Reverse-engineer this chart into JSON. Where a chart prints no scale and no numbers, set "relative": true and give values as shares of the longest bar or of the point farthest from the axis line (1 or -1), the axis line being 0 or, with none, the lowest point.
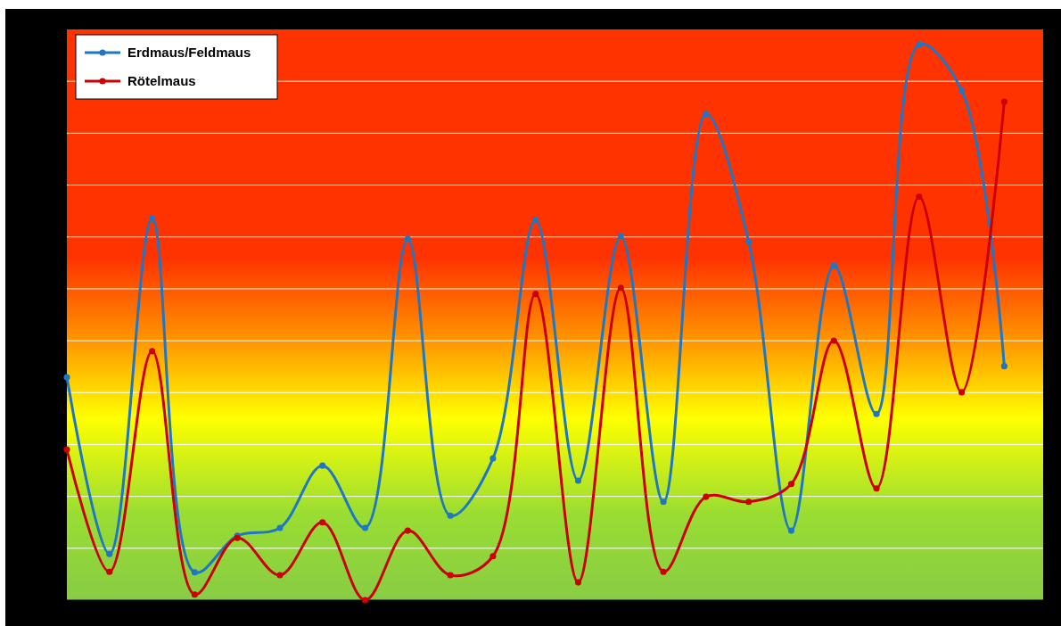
{
  "chart_data": {
    "type": "line",
    "relative": true,
    "categories": [
      null,
      null,
      null,
      null,
      null,
      null,
      null,
      null,
      null,
      null,
      null,
      null,
      null,
      null,
      null,
      null,
      null,
      null,
      null,
      null,
      null,
      null,
      null
    ],
    "series": [
      {
        "name": "Erdmaus/Feldmaus",
        "color": "#1f77c4",
        "values": [
          0.401,
          0.083,
          0.687,
          0.05,
          0.116,
          0.13,
          0.242,
          0.13,
          0.65,
          0.152,
          0.255,
          0.684,
          0.215,
          0.655,
          0.177,
          0.875,
          0.645,
          0.125,
          0.602,
          0.335,
          1,
          0.917,
          0.421
        ]
      },
      {
        "name": "Rötelmaus",
        "color": "#cc0000",
        "values": [
          0.271,
          0.051,
          0.448,
          0.01,
          0.112,
          0.045,
          0.14,
          0,
          0.125,
          0.045,
          0.079,
          0.551,
          0.032,
          0.562,
          0.051,
          0.186,
          0.177,
          0.209,
          0.467,
          0.201,
          0.726,
          0.374,
          0.897
        ]
      }
    ],
    "grid": true,
    "legend": "top left",
    "marker": "circle"
  }
}
